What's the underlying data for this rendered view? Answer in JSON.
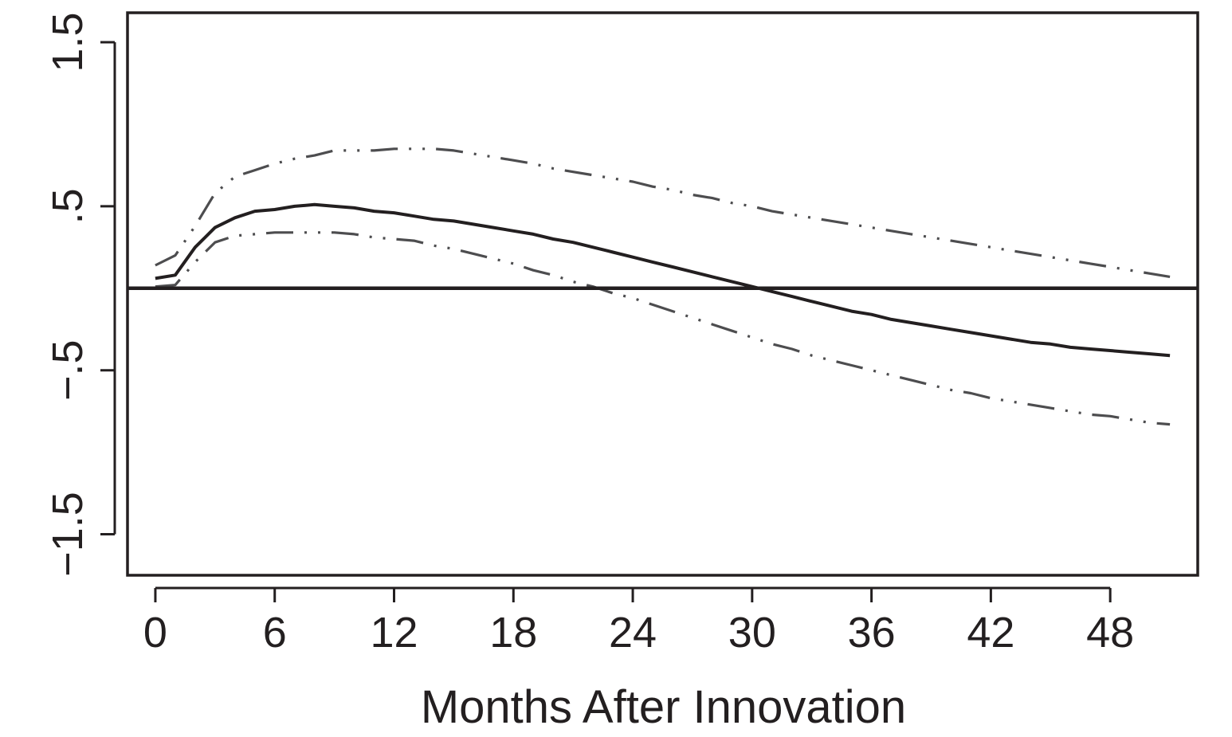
{
  "chart_data": {
    "type": "line",
    "title": "",
    "xlabel": "Months After Innovation",
    "ylabel": "",
    "xlim": [
      -1.4,
      52.4
    ],
    "ylim": [
      -1.75,
      1.68
    ],
    "x_ticks": [
      0,
      6,
      12,
      18,
      24,
      30,
      36,
      42,
      48
    ],
    "x_tick_labels": [
      "0",
      "6",
      "12",
      "18",
      "24",
      "30",
      "36",
      "42",
      "48"
    ],
    "y_ticks": [
      -1.5,
      -0.5,
      0.5,
      1.5
    ],
    "y_tick_labels": [
      "−1.5",
      "−.5",
      ".5",
      "1.5"
    ],
    "reference_line": 0,
    "grid": false,
    "x": [
      0,
      1,
      2,
      3,
      4,
      5,
      6,
      7,
      8,
      9,
      10,
      11,
      12,
      13,
      14,
      15,
      16,
      17,
      18,
      19,
      20,
      21,
      22,
      23,
      24,
      25,
      26,
      27,
      28,
      29,
      30,
      31,
      32,
      33,
      34,
      35,
      36,
      37,
      38,
      39,
      40,
      41,
      42,
      43,
      44,
      45,
      46,
      47,
      48,
      49,
      50,
      51
    ],
    "series": [
      {
        "style": "solid",
        "color": "#231f20",
        "values": [
          0.06,
          0.08,
          0.25,
          0.37,
          0.43,
          0.47,
          0.48,
          0.5,
          0.51,
          0.5,
          0.49,
          0.47,
          0.46,
          0.44,
          0.42,
          0.41,
          0.39,
          0.37,
          0.35,
          0.33,
          0.3,
          0.28,
          0.25,
          0.22,
          0.19,
          0.16,
          0.13,
          0.1,
          0.07,
          0.04,
          0.01,
          -0.02,
          -0.05,
          -0.08,
          -0.11,
          -0.14,
          -0.16,
          -0.19,
          -0.21,
          -0.23,
          -0.25,
          -0.27,
          -0.29,
          -0.31,
          -0.33,
          -0.34,
          -0.36,
          -0.37,
          -0.38,
          -0.39,
          -0.4,
          -0.41
        ]
      },
      {
        "style": "dash-dot-dot",
        "color": "#4d4d4f",
        "values": [
          0.14,
          0.2,
          0.38,
          0.58,
          0.68,
          0.72,
          0.76,
          0.79,
          0.81,
          0.84,
          0.84,
          0.84,
          0.85,
          0.85,
          0.85,
          0.84,
          0.82,
          0.8,
          0.78,
          0.76,
          0.73,
          0.71,
          0.69,
          0.67,
          0.65,
          0.62,
          0.6,
          0.57,
          0.55,
          0.52,
          0.5,
          0.47,
          0.45,
          0.43,
          0.41,
          0.39,
          0.37,
          0.35,
          0.33,
          0.31,
          0.29,
          0.27,
          0.25,
          0.23,
          0.21,
          0.19,
          0.17,
          0.15,
          0.13,
          0.11,
          0.09,
          0.07
        ]
      },
      {
        "style": "dash-dot-dot",
        "color": "#4d4d4f",
        "values": [
          0.01,
          0.02,
          0.16,
          0.28,
          0.32,
          0.33,
          0.34,
          0.34,
          0.34,
          0.34,
          0.33,
          0.31,
          0.3,
          0.29,
          0.26,
          0.24,
          0.21,
          0.18,
          0.15,
          0.11,
          0.08,
          0.04,
          0.01,
          -0.03,
          -0.06,
          -0.1,
          -0.14,
          -0.18,
          -0.22,
          -0.26,
          -0.3,
          -0.34,
          -0.37,
          -0.41,
          -0.44,
          -0.47,
          -0.5,
          -0.53,
          -0.56,
          -0.59,
          -0.62,
          -0.64,
          -0.67,
          -0.69,
          -0.71,
          -0.73,
          -0.75,
          -0.77,
          -0.78,
          -0.8,
          -0.82,
          -0.83
        ]
      }
    ]
  }
}
